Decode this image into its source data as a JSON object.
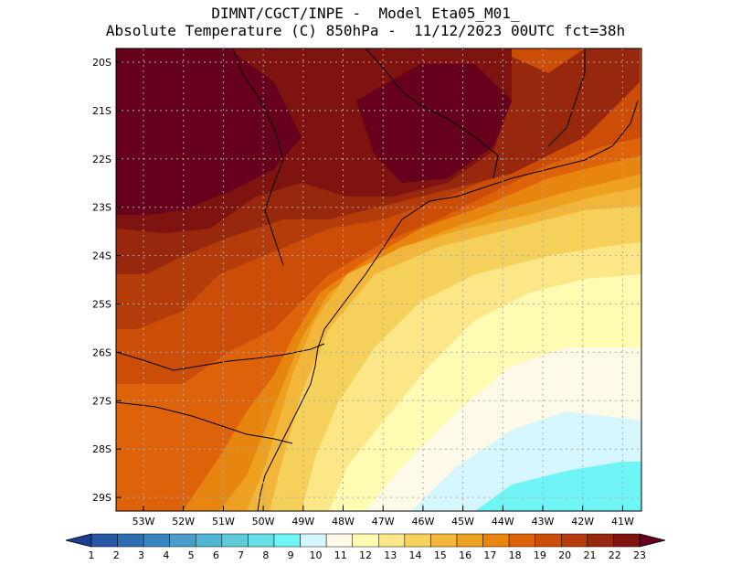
{
  "header": {
    "line1": "DIMNT/CGCT/INPE -  Model Eta05_M01_",
    "line2": "Absolute Temperature (C) 850hPa -  11/12/2023 00UTC fct=38h"
  },
  "axes": {
    "lat_labels": [
      "20S",
      "21S",
      "22S",
      "23S",
      "24S",
      "25S",
      "26S",
      "27S",
      "28S",
      "29S"
    ],
    "lon_labels": [
      "53W",
      "52W",
      "51W",
      "50W",
      "49W",
      "48W",
      "47W",
      "46W",
      "45W",
      "44W",
      "43W",
      "42W",
      "41W"
    ]
  },
  "colorbar": {
    "labels": [
      "1",
      "2",
      "3",
      "4",
      "5",
      "6",
      "7",
      "8",
      "9",
      "10",
      "11",
      "12",
      "13",
      "14",
      "15",
      "16",
      "17",
      "18",
      "19",
      "20",
      "21",
      "22",
      "23"
    ],
    "colors": [
      "#1f3d8f",
      "#2756a3",
      "#2f6db1",
      "#3985bf",
      "#4a9dc9",
      "#52b5d4",
      "#5fcbd9",
      "#66dfe6",
      "#6ff5f5",
      "#d4f6fc",
      "#fff9e8",
      "#fffbb3",
      "#fbe787",
      "#f5d05a",
      "#f2b73a",
      "#eea01f",
      "#e8850f",
      "#de6209",
      "#cc4d08",
      "#b33c0a",
      "#97270d",
      "#7f1310",
      "#66001d"
    ]
  },
  "map_colors": {
    "c22": "#66001d",
    "c21": "#7f1310",
    "c20": "#97270d",
    "c19": "#b33c0a",
    "c18": "#cc4d08",
    "c17": "#de6209",
    "c16": "#e8850f",
    "c15": "#eea01f",
    "c14": "#f2b73a",
    "c13": "#f5d05a",
    "c12": "#fbe787",
    "c11": "#fffbb3",
    "c10": "#fff9e8",
    "c9": "#d4f6fc",
    "c8": "#6ff5f5"
  }
}
